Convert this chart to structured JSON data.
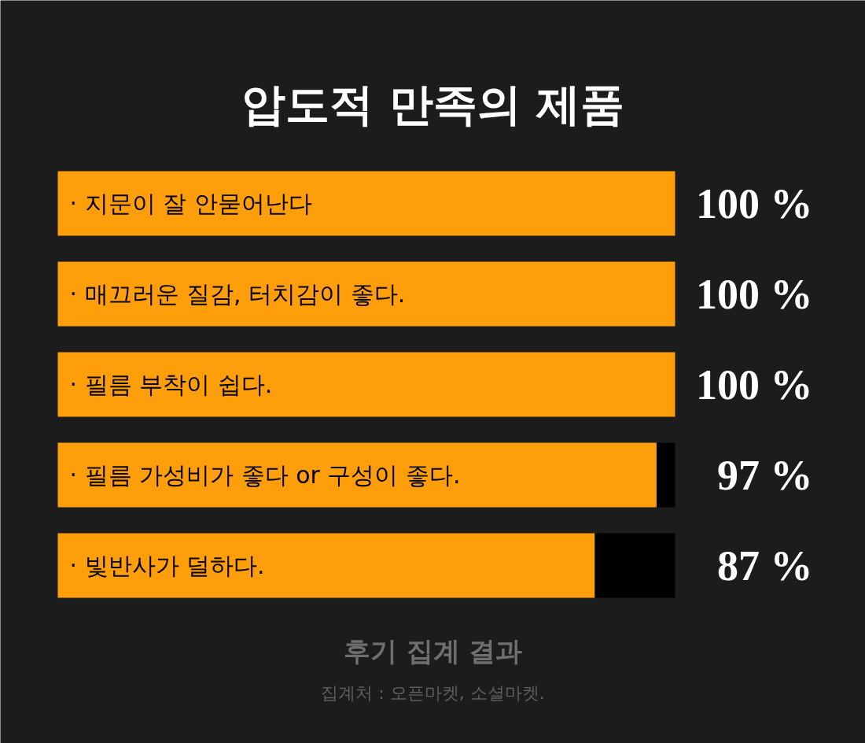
{
  "chart_data": {
    "type": "bar",
    "orientation": "horizontal",
    "stacked": true,
    "title": "압도적 만족의 제품",
    "categories": [
      "· 지문이 잘 안묻어난다",
      "· 매끄러운 질감, 터치감이 좋다.",
      "· 필름 부착이 쉽다.",
      "· 필름 가성비가 좋다 or 구성이 좋다.",
      "· 빛반사가 덜하다."
    ],
    "series": [
      {
        "color": "#ff9e0b",
        "values": [
          100,
          100,
          100,
          97,
          87
        ],
        "value_labels": [
          "100 %",
          "100 %",
          "100 %",
          "97 %",
          "87 %"
        ]
      },
      {
        "color": "#000000",
        "values": [
          null,
          null,
          null,
          3,
          13
        ]
      }
    ],
    "annotations": [
      "후기 집계 결과",
      "집계처 : 오픈마켓, 소셜마켓."
    ]
  }
}
